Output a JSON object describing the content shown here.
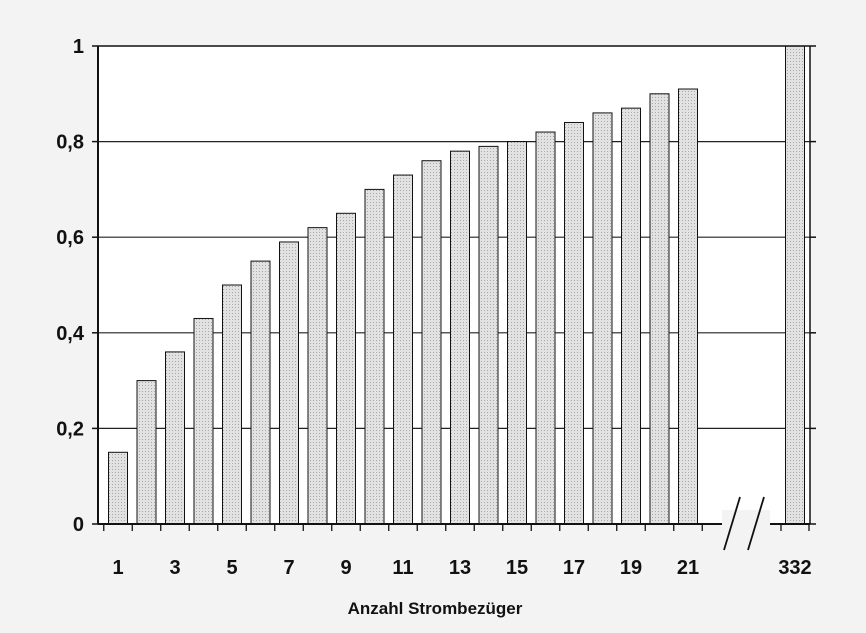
{
  "chart_data": {
    "type": "bar",
    "title": "",
    "xlabel": "Anzahl Strombezüger",
    "ylabel": "",
    "ylim": [
      0,
      1
    ],
    "yticks": [
      "0",
      "0,2",
      "0,4",
      "0,6",
      "0,8",
      "1"
    ],
    "categories": [
      "1",
      "2",
      "3",
      "4",
      "5",
      "6",
      "7",
      "8",
      "9",
      "10",
      "11",
      "12",
      "13",
      "14",
      "15",
      "16",
      "17",
      "18",
      "19",
      "20",
      "21",
      "332"
    ],
    "x_tick_labels": [
      "1",
      "3",
      "5",
      "7",
      "9",
      "11",
      "13",
      "15",
      "17",
      "19",
      "21",
      "332"
    ],
    "values": [
      0.15,
      0.3,
      0.36,
      0.43,
      0.5,
      0.55,
      0.59,
      0.62,
      0.65,
      0.7,
      0.73,
      0.76,
      0.78,
      0.79,
      0.8,
      0.82,
      0.84,
      0.86,
      0.87,
      0.9,
      0.91,
      1.0
    ],
    "axis_break": "between 21 and 332",
    "grid": "horizontal",
    "bar_fill": "#d8d8d8",
    "frame_color": "#111111"
  }
}
